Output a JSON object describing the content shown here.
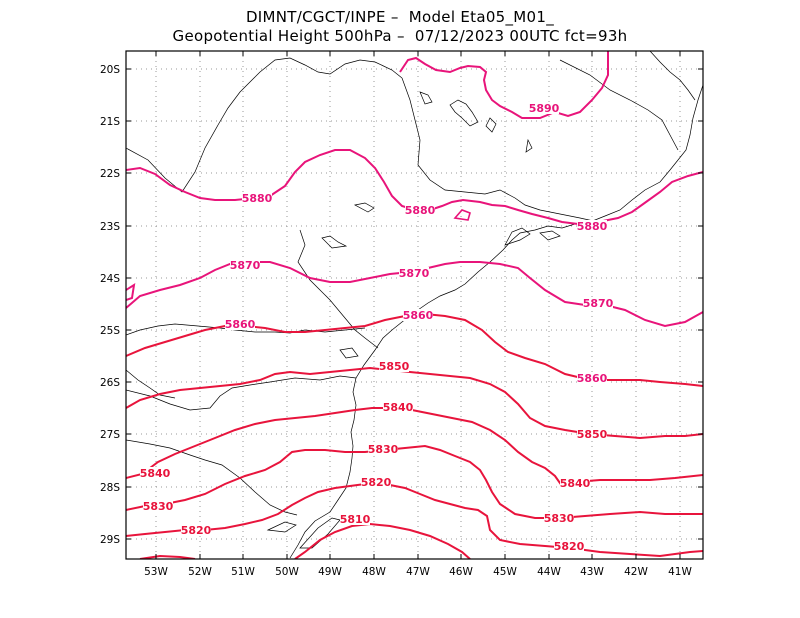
{
  "title_line1": "DIMNT/CGCT/INPE –  Model Eta05_M01_",
  "title_line2": "Geopotential Height 500hPa –  07/12/2023 00UTC fct=93h",
  "colors": {
    "contour_red": "#e8143c",
    "contour_magenta": "#e8147a",
    "grid": "#999999",
    "coast": "#000000"
  },
  "lat_ticks": [
    "20S",
    "21S",
    "22S",
    "23S",
    "24S",
    "25S",
    "26S",
    "27S",
    "28S",
    "29S"
  ],
  "lon_ticks": [
    "53W",
    "52W",
    "51W",
    "50W",
    "49W",
    "48W",
    "47W",
    "46W",
    "45W",
    "44W",
    "43W",
    "42W",
    "41W"
  ],
  "contour_labels": [
    {
      "id": "c5890",
      "text": "5890",
      "color": "#e8147a"
    },
    {
      "id": "c5880a",
      "text": "5880",
      "color": "#e8147a"
    },
    {
      "id": "c5880b",
      "text": "5880",
      "color": "#e8147a"
    },
    {
      "id": "c5880c",
      "text": "5880",
      "color": "#e8147a"
    },
    {
      "id": "c5870a",
      "text": "5870",
      "color": "#e8147a"
    },
    {
      "id": "c5870b",
      "text": "5870",
      "color": "#e8147a"
    },
    {
      "id": "c5870c",
      "text": "5870",
      "color": "#e8147a"
    },
    {
      "id": "c5860a",
      "text": "5860",
      "color": "#e8147a"
    },
    {
      "id": "c5860b",
      "text": "5860",
      "color": "#e8147a"
    },
    {
      "id": "c5860c",
      "text": "5860",
      "color": "#e8147a"
    },
    {
      "id": "c5850a",
      "text": "5850",
      "color": "#e8143c"
    },
    {
      "id": "c5850b",
      "text": "5850",
      "color": "#e8143c"
    },
    {
      "id": "c5840a",
      "text": "5840",
      "color": "#e8143c"
    },
    {
      "id": "c5840b",
      "text": "5840",
      "color": "#e8143c"
    },
    {
      "id": "c5840c",
      "text": "5840",
      "color": "#e8143c"
    },
    {
      "id": "c5830a",
      "text": "5830",
      "color": "#e8143c"
    },
    {
      "id": "c5830b",
      "text": "5830",
      "color": "#e8143c"
    },
    {
      "id": "c5830c",
      "text": "5830",
      "color": "#e8143c"
    },
    {
      "id": "c5820a",
      "text": "5820",
      "color": "#e8143c"
    },
    {
      "id": "c5820b",
      "text": "5820",
      "color": "#e8143c"
    },
    {
      "id": "c5820c",
      "text": "5820",
      "color": "#e8143c"
    },
    {
      "id": "c5810",
      "text": "5810",
      "color": "#e8143c"
    }
  ]
}
